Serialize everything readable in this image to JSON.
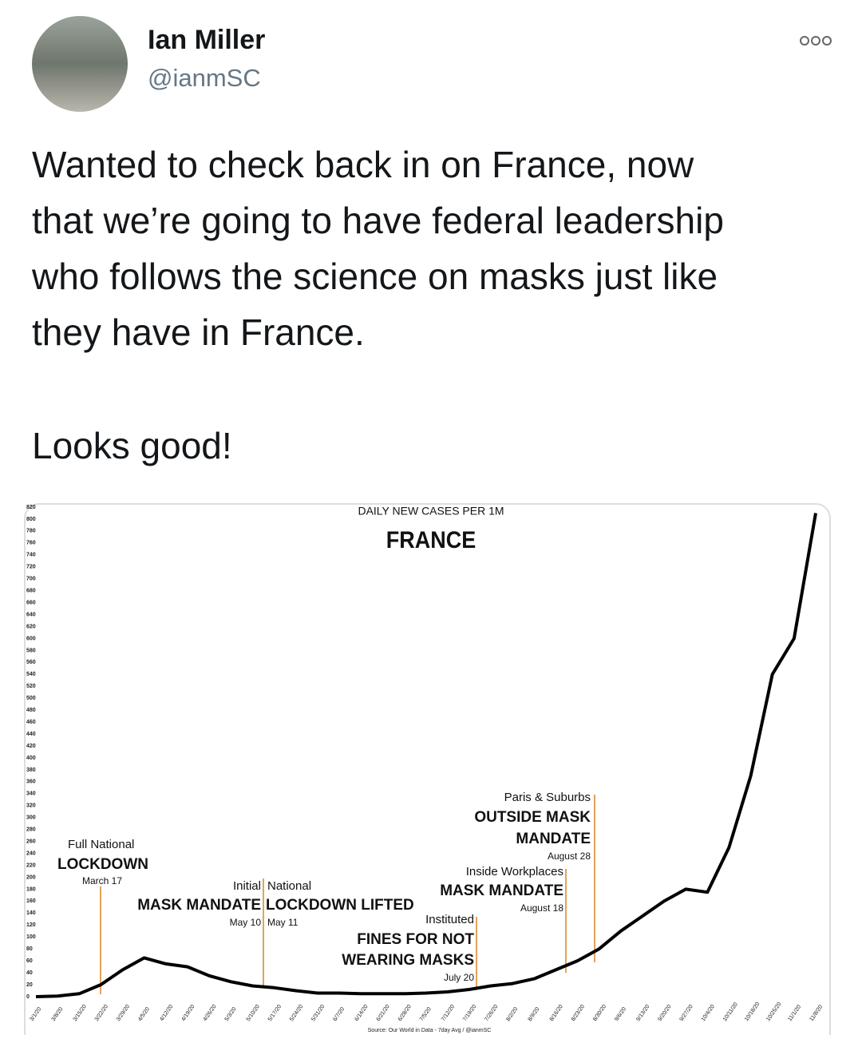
{
  "header": {
    "name": "Ian Miller",
    "handle": "@ianmSC"
  },
  "tweet": {
    "lines": [
      "Wanted to check back in on France, now",
      "that we’re going to have federal leadership",
      "who follows the science on masks just like",
      "they have in France."
    ],
    "closing": "Looks good!"
  },
  "chart_data": {
    "type": "line",
    "subtitle": "DAILY NEW CASES PER 1M",
    "title": "FRANCE",
    "source": "Source: Our World in Data - 7day Avg / @ianmSC",
    "categories": [
      "3/1/20",
      "3/8/20",
      "3/15/20",
      "3/22/20",
      "3/29/20",
      "4/5/20",
      "4/12/20",
      "4/19/20",
      "4/26/20",
      "5/3/20",
      "5/10/20",
      "5/17/20",
      "5/24/20",
      "5/31/20",
      "6/7/20",
      "6/14/20",
      "6/21/20",
      "6/28/20",
      "7/5/20",
      "7/12/20",
      "7/19/20",
      "7/26/20",
      "8/2/20",
      "8/9/20",
      "8/16/20",
      "8/23/20",
      "8/30/20",
      "9/6/20",
      "9/13/20",
      "9/20/20",
      "9/27/20",
      "10/4/20",
      "10/11/20",
      "10/18/20",
      "10/25/20",
      "11/1/20",
      "11/8/20"
    ],
    "series": [
      {
        "name": "France",
        "color": "#000000",
        "values": [
          0,
          1,
          5,
          20,
          45,
          65,
          55,
          50,
          35,
          25,
          18,
          15,
          10,
          6,
          6,
          5,
          5,
          5,
          6,
          8,
          12,
          18,
          22,
          30,
          45,
          60,
          80,
          110,
          135,
          160,
          180,
          175,
          250,
          370,
          540,
          600,
          810
        ]
      }
    ],
    "ylim": [
      0,
      820
    ],
    "yticks": [
      0,
      20,
      40,
      60,
      80,
      100,
      120,
      140,
      160,
      180,
      200,
      220,
      240,
      260,
      280,
      300,
      320,
      340,
      360,
      380,
      400,
      420,
      440,
      460,
      480,
      500,
      520,
      540,
      560,
      580,
      600,
      620,
      640,
      660,
      680,
      700,
      720,
      740,
      760,
      780,
      800,
      820
    ],
    "annotations": [
      {
        "lines": [
          "Full National",
          "LOCKDOWN",
          "March 17"
        ]
      },
      {
        "lines": [
          "Initial",
          "MASK MANDATE",
          "May 10"
        ]
      },
      {
        "lines": [
          "National",
          "LOCKDOWN LIFTED",
          "May 11"
        ]
      },
      {
        "lines": [
          "Instituted",
          "FINES FOR NOT",
          "WEARING MASKS",
          "July 20"
        ]
      },
      {
        "lines": [
          "Inside Workplaces",
          "MASK MANDATE",
          "August 18"
        ]
      },
      {
        "lines": [
          "Paris & Suburbs",
          "OUTSIDE MASK",
          "MANDATE",
          "August 28"
        ]
      }
    ]
  }
}
